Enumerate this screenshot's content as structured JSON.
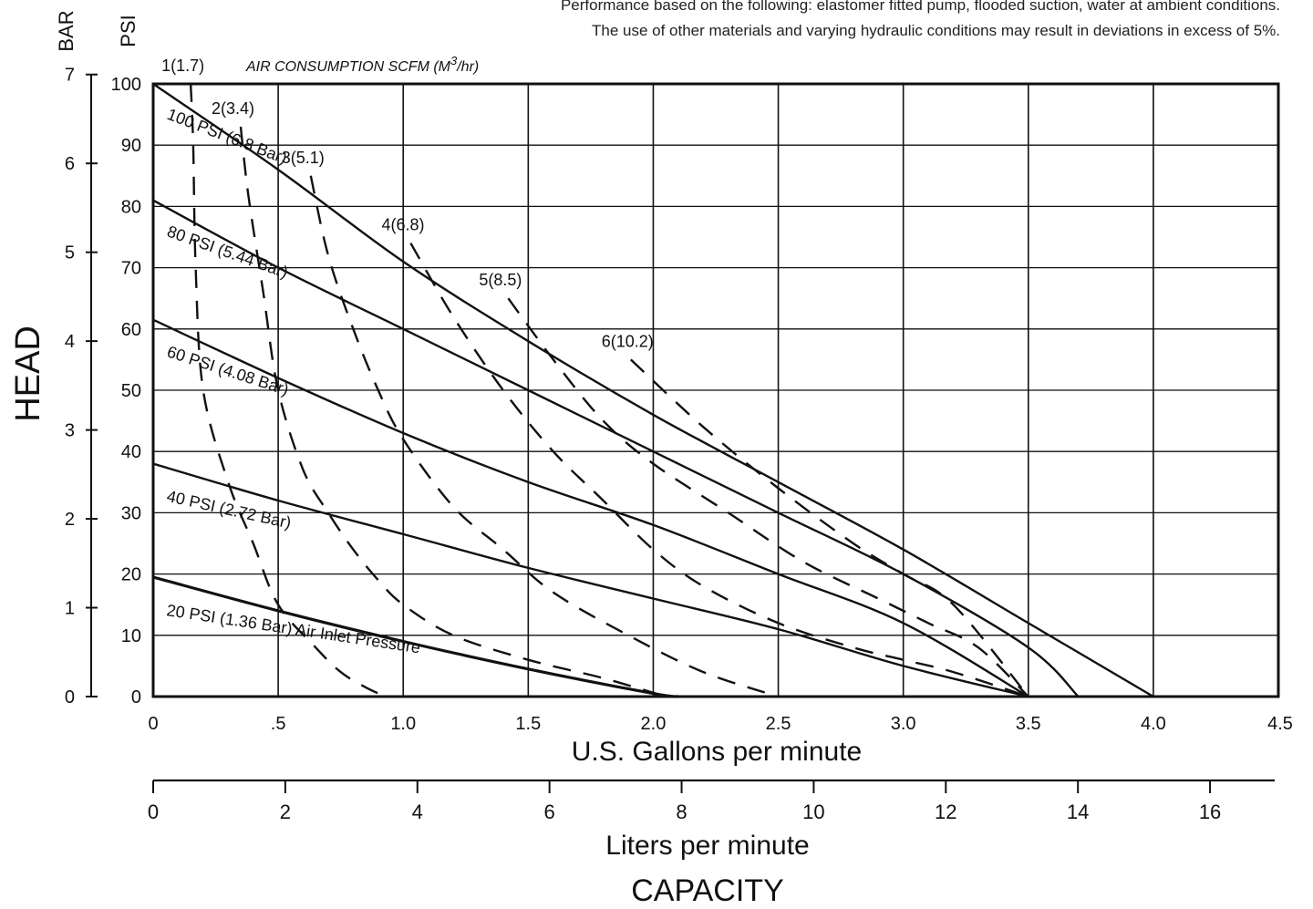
{
  "header": {
    "note_line1": "Performance based on the following: elastomer fitted pump, flooded suction, water at ambient conditions.",
    "note_line2": "The use of other materials and varying hydraulic conditions may result in deviations in excess of 5%."
  },
  "chart_data": {
    "type": "line",
    "y_axis_title": "HEAD",
    "y_units_bar": "BAR",
    "y_units_psi": "PSI",
    "x_axis_title": "U.S. Gallons per minute",
    "x2_axis_title": "Liters per minute",
    "capacity_label": "CAPACITY",
    "air_title": "AIR CONSUMPTION  SCFM (M",
    "air_title_sup": "3",
    "air_title_end": "/hr)",
    "xlim": [
      0,
      4.5
    ],
    "ylim": [
      0,
      100
    ],
    "x_ticks": [
      {
        "v": 0,
        "label": "0"
      },
      {
        "v": 0.5,
        "label": ".5"
      },
      {
        "v": 1.0,
        "label": "1.0"
      },
      {
        "v": 1.5,
        "label": "1.5"
      },
      {
        "v": 2.0,
        "label": "2.0"
      },
      {
        "v": 2.5,
        "label": "2.5"
      },
      {
        "v": 3.0,
        "label": "3.0"
      },
      {
        "v": 3.5,
        "label": "3.5"
      },
      {
        "v": 4.0,
        "label": "4.0"
      },
      {
        "v": 4.5,
        "label": "4.5"
      }
    ],
    "y_ticks_psi": [
      "0",
      "10",
      "20",
      "30",
      "40",
      "50",
      "60",
      "70",
      "80",
      "90",
      "100"
    ],
    "bar_ticks": [
      "0",
      "1",
      "2",
      "3",
      "4",
      "5",
      "6",
      "7"
    ],
    "lpm_ticks": [
      "0",
      "2",
      "4",
      "6",
      "8",
      "10",
      "12",
      "14",
      "16"
    ],
    "grid": true,
    "pressure_series": [
      {
        "name": "100 PSI (6.8 Bar)",
        "x": [
          0,
          0.5,
          1.0,
          1.5,
          2.0,
          2.5,
          3.0,
          3.5,
          4.0
        ],
        "y": [
          100,
          86,
          71,
          58,
          46,
          35,
          24,
          12,
          0
        ]
      },
      {
        "name": "80 PSI (5.44 Bar)",
        "x": [
          0,
          0.5,
          1.0,
          1.5,
          2.0,
          2.5,
          3.0,
          3.5,
          3.7
        ],
        "y": [
          81,
          70,
          60,
          50,
          40,
          30,
          20,
          8,
          0
        ]
      },
      {
        "name": "60 PSI (4.08 Bar)",
        "x": [
          0,
          0.5,
          1.0,
          1.5,
          2.0,
          2.5,
          3.0,
          3.5
        ],
        "y": [
          61.5,
          52,
          43,
          35,
          28,
          20,
          12,
          0
        ]
      },
      {
        "name": "40 PSI (2.72 Bar)",
        "x": [
          0,
          0.5,
          1.0,
          1.5,
          2.0,
          2.5,
          3.0,
          3.5
        ],
        "y": [
          38,
          32,
          26.5,
          21,
          16,
          11,
          5,
          0
        ]
      },
      {
        "name": "20 PSI (1.36 Bar) Air Inlet Pressure",
        "x": [
          0,
          0.5,
          1.0,
          1.5,
          2.0,
          2.1
        ],
        "y": [
          19.5,
          14,
          9,
          4.5,
          0.5,
          0
        ]
      }
    ],
    "air_series": [
      {
        "name": "1(1.7)",
        "x": [
          0.15,
          0.16,
          0.17,
          0.2,
          0.3,
          0.4,
          0.5,
          0.65,
          0.75,
          0.85,
          0.93
        ],
        "y": [
          100,
          90,
          70,
          50,
          35,
          25,
          15,
          8,
          4,
          1.5,
          0
        ]
      },
      {
        "name": "2(3.4)",
        "x": [
          0.35,
          0.38,
          0.44,
          0.5,
          0.6,
          0.7,
          0.8,
          0.9,
          1.0,
          1.2,
          1.5,
          1.8,
          2.05
        ],
        "y": [
          93,
          82,
          66,
          50,
          37,
          30,
          24,
          19,
          15,
          10,
          6,
          3,
          0
        ]
      },
      {
        "name": "3(5.1)",
        "x": [
          0.63,
          0.7,
          0.8,
          0.9,
          1.0,
          1.2,
          1.4,
          1.6,
          1.9,
          2.2,
          2.5
        ],
        "y": [
          85,
          72,
          60,
          50,
          42,
          31,
          24,
          17,
          10,
          4,
          0
        ]
      },
      {
        "name": "4(6.8)",
        "x": [
          1.03,
          1.2,
          1.4,
          1.6,
          1.8,
          2.0,
          2.2,
          2.5,
          2.8,
          3.0,
          3.2,
          3.5
        ],
        "y": [
          74,
          62,
          50,
          40,
          32,
          24,
          18,
          12,
          8,
          6,
          4,
          0
        ]
      },
      {
        "name": "5(8.5)",
        "x": [
          1.42,
          1.6,
          1.8,
          2.0,
          2.3,
          2.6,
          2.9,
          3.1,
          3.3,
          3.5
        ],
        "y": [
          65,
          55,
          45,
          38,
          30,
          22,
          16,
          12,
          8,
          0
        ]
      },
      {
        "name": "6(10.2)",
        "x": [
          1.91,
          2.2,
          2.5,
          2.8,
          3.0,
          3.2,
          3.5
        ],
        "y": [
          55,
          44,
          34,
          25,
          20,
          15,
          0
        ]
      }
    ]
  }
}
